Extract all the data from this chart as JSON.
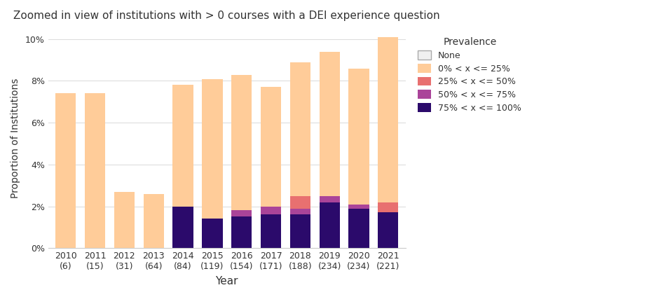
{
  "title": "Zoomed in view of institutions with > 0 courses with a DEI experience question",
  "xlabel": "Year",
  "ylabel": "Proportion of Institutions",
  "years": [
    "2010\n(6)",
    "2011\n(15)",
    "2012\n(31)",
    "2013\n(64)",
    "2014\n(84)",
    "2015\n(119)",
    "2016\n(154)",
    "2017\n(171)",
    "2018\n(188)",
    "2019\n(234)",
    "2020\n(234)",
    "2021\n(221)"
  ],
  "ylim": [
    0,
    0.105
  ],
  "yticks": [
    0.0,
    0.02,
    0.04,
    0.06,
    0.08,
    0.1
  ],
  "ytick_labels": [
    "0%",
    "2%",
    "4%",
    "6%",
    "8%",
    "10%"
  ],
  "legend_title": "Prevalence",
  "legend_labels": [
    "None",
    "0% < x <= 25%",
    "25% < x <= 50%",
    "50% < x <= 75%",
    "75% < x <= 100%"
  ],
  "segments": {
    "high": [
      0.0,
      0.0,
      0.0,
      0.0,
      0.02,
      0.014,
      0.015,
      0.016,
      0.016,
      0.022,
      0.019,
      0.017
    ],
    "mid_high": [
      0.0,
      0.0,
      0.0,
      0.0,
      0.0,
      0.0,
      0.003,
      0.004,
      0.003,
      0.003,
      0.002,
      0.0
    ],
    "mid_low": [
      0.0,
      0.0,
      0.0,
      0.0,
      0.0,
      0.0,
      0.0,
      0.0,
      0.006,
      0.0,
      0.0,
      0.005
    ],
    "low": [
      0.074,
      0.074,
      0.027,
      0.026,
      0.058,
      0.067,
      0.065,
      0.057,
      0.064,
      0.069,
      0.065,
      0.079
    ]
  },
  "seg_colors": {
    "high": "#2B0A6B",
    "mid_high": "#AA4499",
    "mid_low": "#E87070",
    "low": "#FFCC99"
  },
  "legend_colors": [
    "#f0f0f0",
    "#FFCC99",
    "#E87070",
    "#AA4499",
    "#2B0A6B"
  ],
  "background_color": "#ffffff",
  "grid_color": "#dddddd",
  "bar_width": 0.7
}
